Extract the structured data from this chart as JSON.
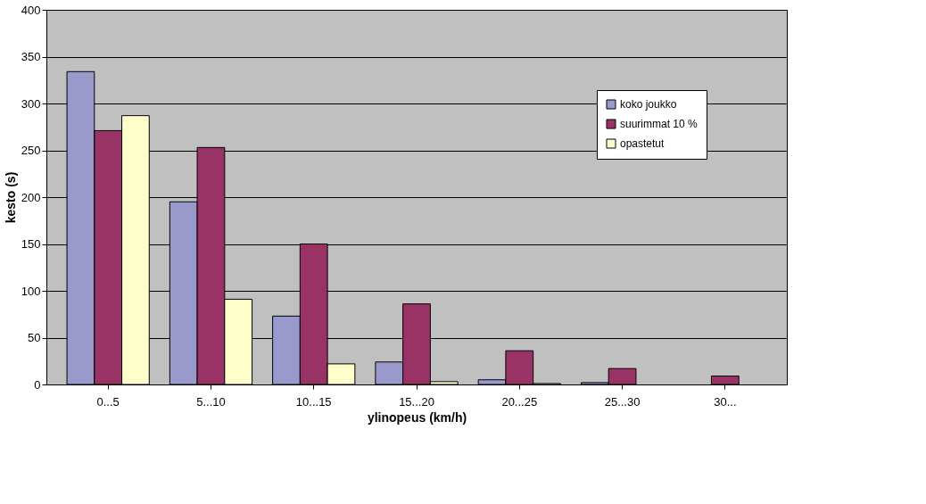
{
  "chart_data": {
    "type": "bar",
    "xlabel": "ylinopeus (km/h)",
    "ylabel": "kesto (s)",
    "categories": [
      "0...5",
      "5...10",
      "10...15",
      "15...20",
      "20...25",
      "25...30",
      "30..."
    ],
    "series": [
      {
        "name": "koko joukko",
        "color": "#9999cc",
        "values": [
          334,
          195,
          73,
          24,
          5,
          2,
          null
        ]
      },
      {
        "name": "suurimmat 10 %",
        "color": "#993366",
        "values": [
          271,
          253,
          150,
          86,
          36,
          17,
          9
        ]
      },
      {
        "name": "opastetut",
        "color": "#ffffcc",
        "values": [
          287,
          91,
          22,
          3,
          1,
          null,
          null
        ]
      }
    ],
    "ylim": [
      0,
      400
    ],
    "yticks": [
      0,
      50,
      100,
      150,
      200,
      250,
      300,
      350,
      400
    ],
    "grid": "y",
    "legend": "top right"
  }
}
